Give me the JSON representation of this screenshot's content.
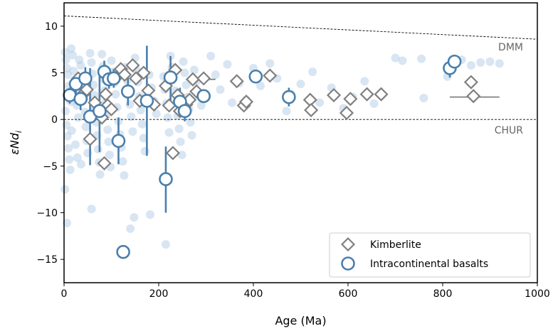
{
  "chart_data": {
    "type": "scatter",
    "xlabel": "Age (Ma)",
    "ylabel": "εNd",
    "ylabel_subscript": "i",
    "xlim": [
      0,
      1000
    ],
    "ylim": [
      -17.5,
      12.5
    ],
    "xticks": [
      0,
      200,
      400,
      600,
      800,
      1000
    ],
    "yticks": [
      -15,
      -10,
      -5,
      0,
      5,
      10
    ],
    "grid": false,
    "legend_position": "bottom-right",
    "reference_lines": [
      {
        "name": "DMM",
        "x": [
          0,
          1000
        ],
        "y": [
          11.1,
          8.6
        ]
      },
      {
        "name": "CHUR",
        "x": [
          0,
          1000
        ],
        "y": [
          0,
          0
        ]
      }
    ],
    "background_points": [
      [
        2,
        7.2
      ],
      [
        4,
        6.4
      ],
      [
        6,
        5.5
      ],
      [
        8,
        4.8
      ],
      [
        10,
        3.6
      ],
      [
        12,
        2.8
      ],
      [
        14,
        1.9
      ],
      [
        3,
        0.9
      ],
      [
        5,
        -0.6
      ],
      [
        7,
        -1.8
      ],
      [
        9,
        -3.1
      ],
      [
        11,
        -4.3
      ],
      [
        13,
        -5.4
      ],
      [
        2,
        -7.5
      ],
      [
        6,
        -11.1
      ],
      [
        15,
        7.6
      ],
      [
        18,
        6.9
      ],
      [
        20,
        5.2
      ],
      [
        22,
        4.1
      ],
      [
        25,
        3.0
      ],
      [
        27,
        1.5
      ],
      [
        30,
        0.2
      ],
      [
        16,
        -1.2
      ],
      [
        24,
        -2.7
      ],
      [
        28,
        -4.1
      ],
      [
        32,
        6.4
      ],
      [
        35,
        5.8
      ],
      [
        38,
        4.4
      ],
      [
        40,
        3.3
      ],
      [
        42,
        2.2
      ],
      [
        44,
        0.8
      ],
      [
        46,
        -0.8
      ],
      [
        48,
        -2.3
      ],
      [
        50,
        -3.6
      ],
      [
        36,
        -4.8
      ],
      [
        55,
        7.1
      ],
      [
        58,
        6.1
      ],
      [
        60,
        4.9
      ],
      [
        62,
        3.7
      ],
      [
        64,
        2.6
      ],
      [
        66,
        1.1
      ],
      [
        68,
        -0.3
      ],
      [
        70,
        -1.7
      ],
      [
        72,
        -3.2
      ],
      [
        74,
        -4.6
      ],
      [
        76,
        -5.9
      ],
      [
        58,
        -9.6
      ],
      [
        80,
        7.0
      ],
      [
        82,
        5.7
      ],
      [
        84,
        4.3
      ],
      [
        86,
        3.1
      ],
      [
        88,
        1.8
      ],
      [
        90,
        0.5
      ],
      [
        92,
        -1.1
      ],
      [
        94,
        -2.4
      ],
      [
        96,
        -3.8
      ],
      [
        98,
        -5.1
      ],
      [
        100,
        6.3
      ],
      [
        103,
        5.1
      ],
      [
        106,
        3.9
      ],
      [
        109,
        2.7
      ],
      [
        112,
        1.3
      ],
      [
        115,
        -0.2
      ],
      [
        118,
        -1.6
      ],
      [
        121,
        -3.0
      ],
      [
        124,
        -4.5
      ],
      [
        127,
        -6.0
      ],
      [
        130,
        5.6
      ],
      [
        133,
        4.2
      ],
      [
        136,
        2.9
      ],
      [
        139,
        1.6
      ],
      [
        142,
        0.3
      ],
      [
        145,
        -1.3
      ],
      [
        148,
        -10.5
      ],
      [
        150,
        6.6
      ],
      [
        153,
        5.3
      ],
      [
        156,
        4.0
      ],
      [
        159,
        2.5
      ],
      [
        162,
        1.0
      ],
      [
        165,
        -0.5
      ],
      [
        168,
        -2.0
      ],
      [
        171,
        -3.4
      ],
      [
        140,
        -11.7
      ],
      [
        180,
        4.8
      ],
      [
        185,
        3.4
      ],
      [
        190,
        2.0
      ],
      [
        195,
        0.6
      ],
      [
        182,
        -10.2
      ],
      [
        210,
        4.6
      ],
      [
        213,
        3.2
      ],
      [
        216,
        1.7
      ],
      [
        219,
        0.2
      ],
      [
        222,
        -1.4
      ],
      [
        215,
        -13.4
      ],
      [
        225,
        6.8
      ],
      [
        228,
        5.6
      ],
      [
        231,
        4.4
      ],
      [
        234,
        3.1
      ],
      [
        237,
        1.8
      ],
      [
        240,
        0.4
      ],
      [
        243,
        -1.0
      ],
      [
        246,
        -2.4
      ],
      [
        249,
        -3.8
      ],
      [
        252,
        6.2
      ],
      [
        255,
        5.0
      ],
      [
        258,
        3.7
      ],
      [
        261,
        2.4
      ],
      [
        264,
        1.1
      ],
      [
        267,
        -0.3
      ],
      [
        270,
        -1.7
      ],
      [
        275,
        5.3
      ],
      [
        280,
        4.1
      ],
      [
        285,
        2.8
      ],
      [
        290,
        1.5
      ],
      [
        310,
        6.8
      ],
      [
        320,
        4.8
      ],
      [
        330,
        3.2
      ],
      [
        345,
        5.9
      ],
      [
        355,
        1.8
      ],
      [
        370,
        3.9
      ],
      [
        385,
        2.1
      ],
      [
        400,
        5.5
      ],
      [
        415,
        3.6
      ],
      [
        435,
        6.0
      ],
      [
        450,
        4.4
      ],
      [
        470,
        0.9
      ],
      [
        480,
        2.7
      ],
      [
        500,
        3.8
      ],
      [
        525,
        5.1
      ],
      [
        540,
        1.8
      ],
      [
        565,
        3.4
      ],
      [
        590,
        1.2
      ],
      [
        610,
        2.4
      ],
      [
        635,
        4.1
      ],
      [
        655,
        1.7
      ],
      [
        700,
        6.6
      ],
      [
        715,
        6.3
      ],
      [
        755,
        6.5
      ],
      [
        760,
        2.3
      ],
      [
        810,
        4.6
      ],
      [
        840,
        6.4
      ],
      [
        860,
        5.8
      ],
      [
        880,
        6.1
      ],
      [
        900,
        6.2
      ],
      [
        920,
        6.0
      ]
    ],
    "series": [
      {
        "name": "Kimberlite",
        "marker": "diamond",
        "color": "#808080",
        "points": [
          [
            30,
            4.4
          ],
          [
            40,
            2.7
          ],
          [
            48,
            3.2
          ],
          [
            55,
            -2.1
          ],
          [
            65,
            1.8
          ],
          [
            75,
            1.0
          ],
          [
            80,
            0.2
          ],
          [
            85,
            -4.7
          ],
          [
            88,
            2.7
          ],
          [
            92,
            1.5
          ],
          [
            100,
            1.1
          ],
          [
            110,
            4.5
          ],
          [
            120,
            5.4
          ],
          [
            128,
            4.8
          ],
          [
            135,
            3.1
          ],
          [
            145,
            5.8
          ],
          [
            152,
            4.4
          ],
          [
            160,
            2.0
          ],
          [
            168,
            5.0
          ],
          [
            178,
            3.1
          ],
          [
            190,
            1.6
          ],
          [
            215,
            3.6
          ],
          [
            222,
            1.5
          ],
          [
            230,
            -3.6
          ],
          [
            235,
            5.3
          ],
          [
            240,
            2.6
          ],
          [
            245,
            0.9
          ],
          [
            258,
            1.6
          ],
          [
            265,
            2.1
          ],
          [
            272,
            4.3
          ],
          [
            280,
            3.0
          ],
          [
            295,
            4.4
          ],
          [
            365,
            4.1
          ],
          [
            380,
            1.5
          ],
          [
            385,
            1.9
          ],
          [
            435,
            4.7
          ],
          [
            520,
            2.1
          ],
          [
            522,
            1.0
          ],
          [
            570,
            2.6
          ],
          [
            597,
            0.7
          ],
          [
            605,
            2.2
          ],
          [
            640,
            2.7
          ],
          [
            670,
            2.7
          ],
          [
            860,
            4.0
          ],
          [
            865,
            2.5
          ]
        ]
      },
      {
        "name": "Intracontinental basalts",
        "marker": "circle",
        "color": "#4a7fad",
        "points": [
          {
            "x": 12,
            "y": 2.6,
            "ylo": 1.7,
            "yhi": 3.4
          },
          {
            "x": 25,
            "y": 3.8,
            "ylo": 2.8,
            "yhi": 4.8
          },
          {
            "x": 35,
            "y": 2.2,
            "ylo": 1.0,
            "yhi": 3.4
          },
          {
            "x": 45,
            "y": 4.4,
            "ylo": 3.3,
            "yhi": 5.6
          },
          {
            "x": 55,
            "y": 0.3,
            "ylo": -4.9,
            "yhi": 5.5
          },
          {
            "x": 75,
            "y": 0.9,
            "ylo": -3.5,
            "yhi": 5.3
          },
          {
            "x": 85,
            "y": 5.1,
            "ylo": 4.0,
            "yhi": 6.3
          },
          {
            "x": 95,
            "y": 4.3,
            "ylo": 3.3,
            "yhi": 5.3
          },
          {
            "x": 105,
            "y": 4.4,
            "ylo": 3.4,
            "yhi": 5.4
          },
          {
            "x": 115,
            "y": -2.3,
            "ylo": -4.8,
            "yhi": 0.2
          },
          {
            "x": 125,
            "y": -14.2
          },
          {
            "x": 135,
            "y": 3.0,
            "ylo": 1.5,
            "yhi": 4.5
          },
          {
            "x": 175,
            "y": 2.0,
            "ylo": -3.9,
            "yhi": 7.9
          },
          {
            "x": 215,
            "y": -6.4,
            "ylo": -10.0,
            "yhi": -2.9
          },
          {
            "x": 225,
            "y": 4.5,
            "ylo": 2.0,
            "yhi": 6.8
          },
          {
            "x": 245,
            "y": 1.9,
            "ylo": 0.4,
            "yhi": 3.4
          },
          {
            "x": 255,
            "y": 0.9,
            "ylo": -0.2,
            "yhi": 2.0
          },
          {
            "x": 295,
            "y": 2.5
          },
          {
            "x": 405,
            "y": 4.6
          },
          {
            "x": 475,
            "y": 2.4,
            "ylo": 1.4,
            "yhi": 3.4
          },
          {
            "x": 815,
            "y": 5.5,
            "ylo": 4.5,
            "yhi": 6.5
          },
          {
            "x": 825,
            "y": 6.2
          }
        ]
      }
    ],
    "hbars": [
      {
        "y": 4.3,
        "xlo": 268,
        "xhi": 320
      },
      {
        "y": 2.4,
        "xlo": 815,
        "xhi": 920
      }
    ]
  }
}
